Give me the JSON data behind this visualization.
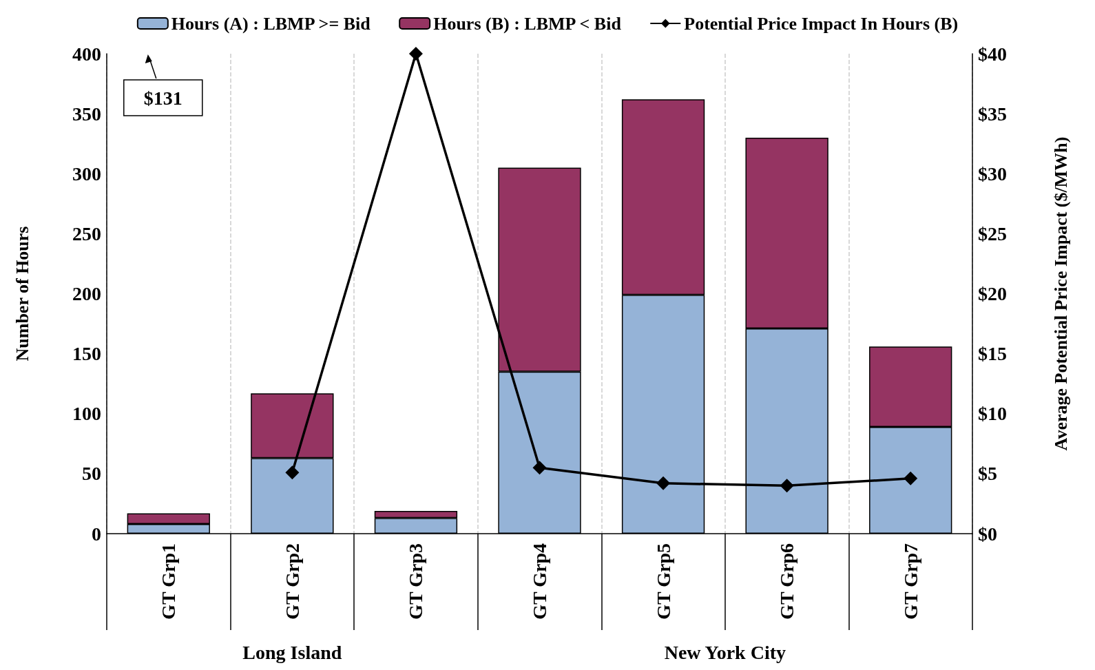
{
  "chart_data": {
    "type": "bar",
    "stacked": true,
    "categories": [
      "GT Grp1",
      "GT Grp2",
      "GT Grp3",
      "GT Grp4",
      "GT Grp5",
      "GT Grp6",
      "GT Grp7"
    ],
    "series": [
      {
        "name": "Hours (A) : LBMP >= Bid",
        "color": "#95b3d7",
        "values": [
          8,
          63,
          13,
          135,
          199,
          171,
          89
        ]
      },
      {
        "name": "Hours (B) : LBMP < Bid",
        "color": "#953462",
        "values": [
          9,
          54,
          6,
          170,
          163,
          159,
          67
        ]
      },
      {
        "name": "Potential Price Impact In Hours (B)",
        "type": "line",
        "axis": "y2",
        "color": "#000000",
        "marker": "diamond",
        "values": [
          null,
          5.1,
          40,
          5.5,
          4.2,
          4.0,
          4.6
        ]
      }
    ],
    "ylabel": "Number of Hours",
    "y2label": "Average Potential Price Impact ($/MWh)",
    "ylim": [
      0,
      400
    ],
    "yticks": [
      0,
      50,
      100,
      150,
      200,
      250,
      300,
      350,
      400
    ],
    "y2lim": [
      0,
      40
    ],
    "y2ticks": [
      {
        "value": 0,
        "label": "$0"
      },
      {
        "value": 5,
        "label": "$5"
      },
      {
        "value": 10,
        "label": "$10"
      },
      {
        "value": 15,
        "label": "$15"
      },
      {
        "value": 20,
        "label": "$20"
      },
      {
        "value": 25,
        "label": "$25"
      },
      {
        "value": 30,
        "label": "$30"
      },
      {
        "value": 35,
        "label": "$35"
      },
      {
        "value": 40,
        "label": "$40"
      }
    ],
    "annotations": [
      "$131",
      "Long Island",
      "New York City"
    ],
    "grid": "x",
    "legend": "top"
  }
}
